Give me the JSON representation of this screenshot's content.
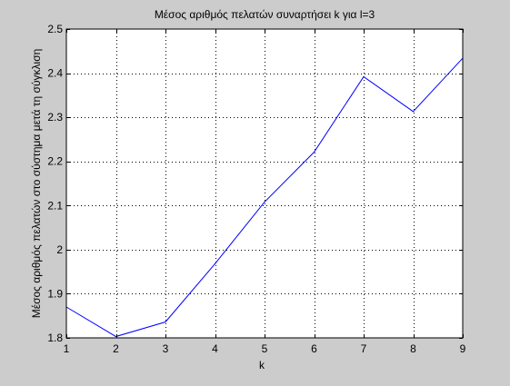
{
  "chart_data": {
    "type": "line",
    "title": "Μέσος αριθμός πελατών συναρτήσει k για l=3",
    "xlabel": "k",
    "ylabel": "Μέσος αριθμός πελατών στο σύστημα μετά τη σύγκλιση",
    "xlim": [
      1,
      9
    ],
    "ylim": [
      1.8,
      2.5
    ],
    "xticks": [
      1,
      2,
      3,
      4,
      5,
      6,
      7,
      8,
      9
    ],
    "yticks": [
      1.8,
      1.9,
      2.0,
      2.1,
      2.2,
      2.3,
      2.4,
      2.5
    ],
    "xtick_labels": [
      "1",
      "2",
      "3",
      "4",
      "5",
      "6",
      "7",
      "8",
      "9"
    ],
    "ytick_labels": [
      "1.8",
      "1.9",
      "2",
      "2.1",
      "2.2",
      "2.3",
      "2.4",
      "2.5"
    ],
    "grid": true,
    "series": [
      {
        "x": [
          1,
          2,
          3,
          4,
          5,
          6,
          7,
          8,
          9
        ],
        "values": [
          1.87,
          1.803,
          1.836,
          1.968,
          2.108,
          2.221,
          2.392,
          2.313,
          2.434
        ],
        "color": "#0000ff"
      }
    ]
  },
  "colors": {
    "figure_background": "#cccccc",
    "axes_background": "#ffffff",
    "line": "#0000ff"
  }
}
